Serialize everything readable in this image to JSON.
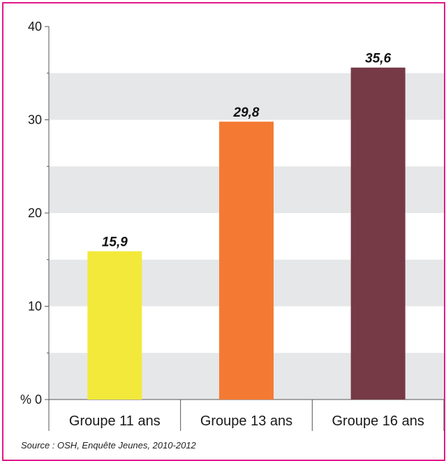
{
  "chart_data": {
    "type": "bar",
    "categories": [
      "Groupe 11 ans",
      "Groupe 13 ans",
      "Groupe 16 ans"
    ],
    "values": [
      15.9,
      29.8,
      35.6
    ],
    "value_labels": [
      "15,9",
      "29,8",
      "35,6"
    ],
    "ylim": [
      0,
      40
    ],
    "yticks": [
      0,
      10,
      20,
      30,
      40
    ],
    "ytick_labels": [
      "% 0",
      "10",
      "20",
      "30",
      "40"
    ],
    "grid": "alternating horizontal bands",
    "title": "",
    "xlabel": "",
    "ylabel": "",
    "source": "Source : OSH, Enquête Jeunes, 2010-2012",
    "colors": {
      "bars": [
        "#f3e93a",
        "#f47a33",
        "#753a45"
      ],
      "band": "#e6e7e9",
      "frame": "#e0198a"
    }
  }
}
